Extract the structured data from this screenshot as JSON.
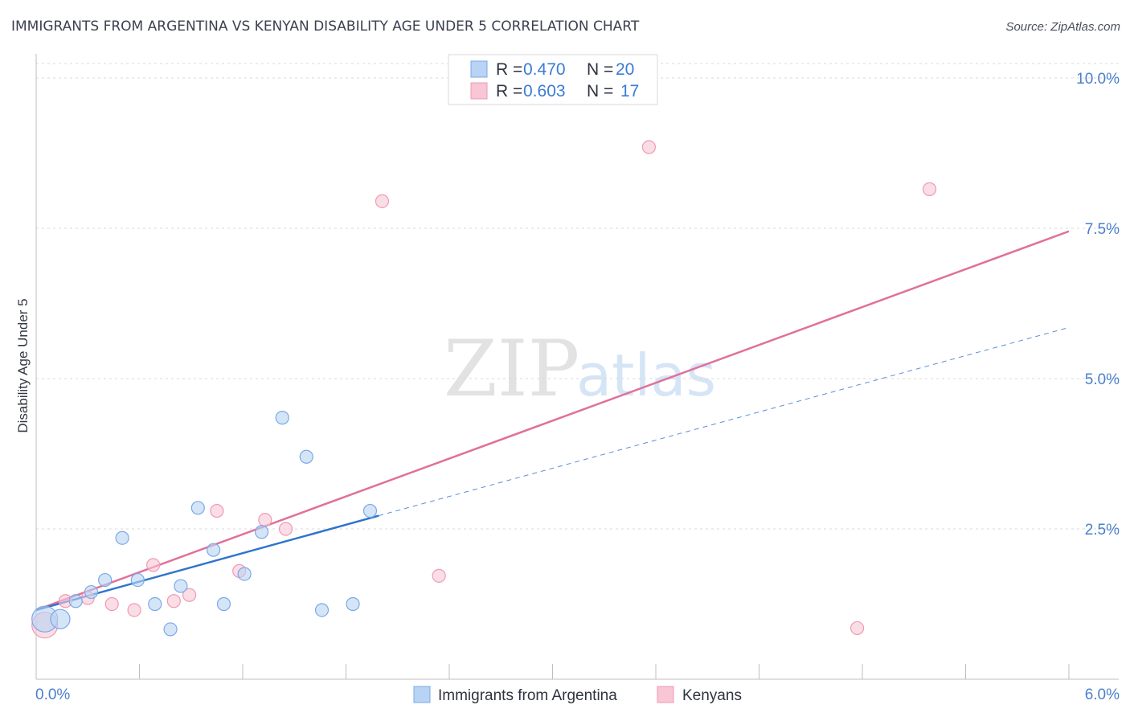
{
  "header": {
    "title": "IMMIGRANTS FROM ARGENTINA VS KENYAN DISABILITY AGE UNDER 5 CORRELATION CHART",
    "source": "Source: ZipAtlas.com"
  },
  "watermark": {
    "zip": "ZIP",
    "atlas": "atlas"
  },
  "legend": {
    "rows": [
      {
        "r_label": "R =",
        "r_value": "0.470",
        "n_label": "N =",
        "n_value": "20"
      },
      {
        "r_label": "R =",
        "r_value": "0.603",
        "n_label": "N =",
        "n_value": "17"
      }
    ]
  },
  "bottom_legend": {
    "items": [
      {
        "label": "Immigrants from Argentina"
      },
      {
        "label": "Kenyans"
      }
    ]
  },
  "colors": {
    "series_a_fill": "#b9d3f4",
    "series_a_stroke": "#7aa9e6",
    "series_a_line": "#2f74cc",
    "series_b_fill": "#f8c6d5",
    "series_b_stroke": "#ee9ab4",
    "series_b_line": "#e0709a",
    "grid": "#d9d9d9",
    "axis": "#bfbfbf",
    "tick_text": "#4b7fcc"
  },
  "chart_data": {
    "type": "scatter",
    "title": "IMMIGRANTS FROM ARGENTINA VS KENYAN DISABILITY AGE UNDER 5 CORRELATION CHART",
    "xlabel": "",
    "ylabel": "Disability Age Under 5",
    "xlim": [
      0,
      6.0
    ],
    "ylim": [
      0,
      10.0
    ],
    "x_tick_labels": [
      {
        "value": 0,
        "label": "0.0%"
      },
      {
        "value": 6.0,
        "label": "6.0%"
      }
    ],
    "x_minor_ticks": [
      0.6,
      1.2,
      1.8,
      2.4,
      3.0,
      3.6,
      4.2,
      4.8,
      5.4,
      6.0
    ],
    "y_ticks": [
      {
        "value": 2.5,
        "label": "2.5%"
      },
      {
        "value": 5.0,
        "label": "5.0%"
      },
      {
        "value": 7.5,
        "label": "7.5%"
      },
      {
        "value": 10.0,
        "label": "10.0%"
      }
    ],
    "series": [
      {
        "name": "Immigrants from Argentina",
        "r": 0.47,
        "n": 20,
        "points": [
          {
            "x": 0.05,
            "y": 1.0,
            "size": "large"
          },
          {
            "x": 0.14,
            "y": 1.0,
            "size": "medium"
          },
          {
            "x": 0.23,
            "y": 1.3,
            "size": "small"
          },
          {
            "x": 0.32,
            "y": 1.45,
            "size": "small"
          },
          {
            "x": 0.4,
            "y": 1.65,
            "size": "small"
          },
          {
            "x": 0.5,
            "y": 2.35,
            "size": "small"
          },
          {
            "x": 0.59,
            "y": 1.65,
            "size": "small"
          },
          {
            "x": 0.69,
            "y": 1.25,
            "size": "small"
          },
          {
            "x": 0.78,
            "y": 0.83,
            "size": "small"
          },
          {
            "x": 0.84,
            "y": 1.55,
            "size": "small"
          },
          {
            "x": 0.94,
            "y": 2.85,
            "size": "small"
          },
          {
            "x": 1.03,
            "y": 2.15,
            "size": "small"
          },
          {
            "x": 1.09,
            "y": 1.25,
            "size": "small"
          },
          {
            "x": 1.21,
            "y": 1.75,
            "size": "small"
          },
          {
            "x": 1.31,
            "y": 2.45,
            "size": "small"
          },
          {
            "x": 1.43,
            "y": 4.35,
            "size": "small"
          },
          {
            "x": 1.57,
            "y": 3.7,
            "size": "small"
          },
          {
            "x": 1.66,
            "y": 1.15,
            "size": "small"
          },
          {
            "x": 1.84,
            "y": 1.25,
            "size": "small"
          },
          {
            "x": 1.94,
            "y": 2.8,
            "size": "small"
          }
        ],
        "trend": {
          "x0": 0.0,
          "y0": 1.15,
          "x1": 1.99,
          "y1": 2.72,
          "dashed_to_x": 6.0,
          "dashed_to_y": 5.85
        }
      },
      {
        "name": "Kenyans",
        "r": 0.603,
        "n": 17,
        "points": [
          {
            "x": 0.05,
            "y": 0.9,
            "size": "large"
          },
          {
            "x": 0.17,
            "y": 1.3,
            "size": "small"
          },
          {
            "x": 0.3,
            "y": 1.35,
            "size": "small"
          },
          {
            "x": 0.44,
            "y": 1.25,
            "size": "small"
          },
          {
            "x": 0.57,
            "y": 1.15,
            "size": "small"
          },
          {
            "x": 0.68,
            "y": 1.9,
            "size": "small"
          },
          {
            "x": 0.8,
            "y": 1.3,
            "size": "small"
          },
          {
            "x": 0.89,
            "y": 1.4,
            "size": "small"
          },
          {
            "x": 1.05,
            "y": 2.8,
            "size": "small"
          },
          {
            "x": 1.18,
            "y": 1.8,
            "size": "small"
          },
          {
            "x": 1.33,
            "y": 2.65,
            "size": "small"
          },
          {
            "x": 1.45,
            "y": 2.5,
            "size": "small"
          },
          {
            "x": 2.01,
            "y": 7.95,
            "size": "small"
          },
          {
            "x": 2.34,
            "y": 1.72,
            "size": "small"
          },
          {
            "x": 3.56,
            "y": 8.85,
            "size": "small"
          },
          {
            "x": 4.77,
            "y": 0.85,
            "size": "small"
          },
          {
            "x": 5.19,
            "y": 8.15,
            "size": "small"
          }
        ],
        "trend": {
          "x0": 0.0,
          "y0": 1.15,
          "x1": 6.0,
          "y1": 7.45
        }
      }
    ]
  }
}
